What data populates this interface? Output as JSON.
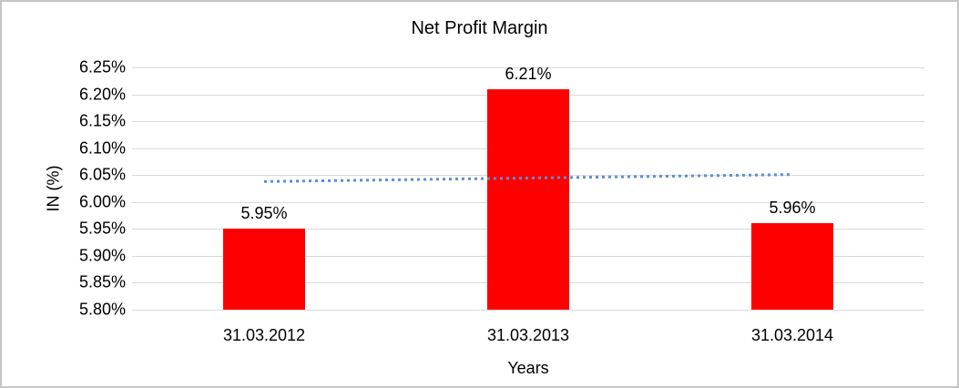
{
  "chart_data": {
    "type": "bar",
    "title": "Net Profit Margin",
    "xlabel": "Years",
    "ylabel": "IN (%)",
    "categories": [
      "31.03.2012",
      "31.03.2013",
      "31.03.2014"
    ],
    "values": [
      5.95,
      6.21,
      5.96
    ],
    "bar_labels": [
      "5.95%",
      "6.21%",
      "5.96%"
    ],
    "ytick_labels": [
      "6.25%",
      "6.20%",
      "6.15%",
      "6.10%",
      "6.05%",
      "6.00%",
      "5.95%",
      "5.90%",
      "5.85%",
      "5.80%"
    ],
    "yticks": [
      6.25,
      6.2,
      6.15,
      6.1,
      6.05,
      6.0,
      5.95,
      5.9,
      5.85,
      5.8
    ],
    "ylim": [
      5.8,
      6.25
    ],
    "grid": true,
    "legend": "none",
    "colors": {
      "bar": "#ff0000",
      "trendline": "#5b8fd2",
      "gridline": "#d9d9d9",
      "text": "#000000",
      "frame_border": "#c6c6c6",
      "background": "#ffffff"
    },
    "trendline": {
      "type": "linear",
      "style": "dotted",
      "start_value": 6.038,
      "end_value": 6.051
    }
  }
}
